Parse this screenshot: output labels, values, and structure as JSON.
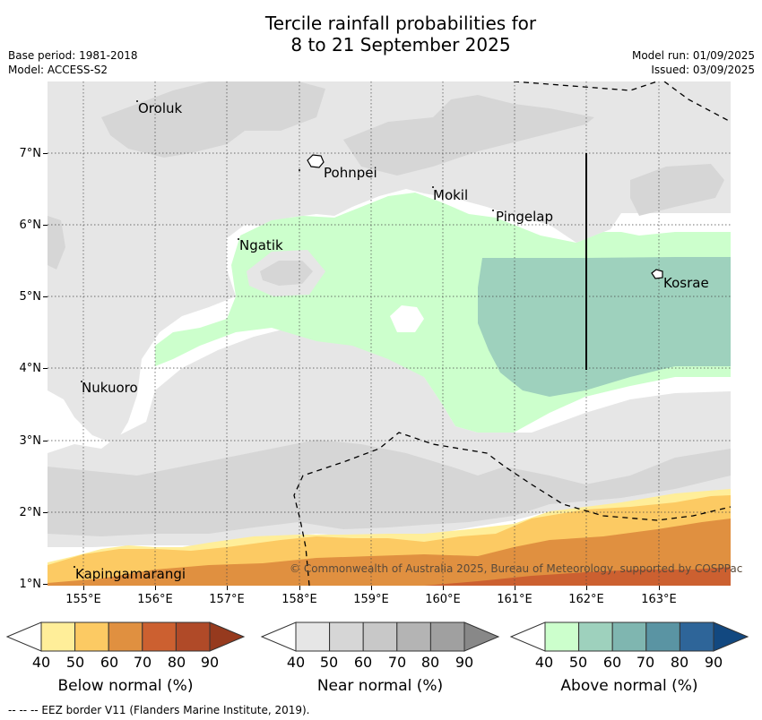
{
  "header": {
    "title_line1": "Tercile rainfall probabilities for",
    "title_line2": "8 to 21 September 2025",
    "base_period": "Base period: 1981-2018",
    "model": "Model: ACCESS-S2",
    "model_run": "Model run: 01/09/2025",
    "issued": "Issued: 03/09/2025"
  },
  "map": {
    "lat_labels": [
      "7°N",
      "6°N",
      "5°N",
      "4°N",
      "3°N",
      "2°N",
      "1°N"
    ],
    "lon_labels": [
      "155°E",
      "156°E",
      "157°E",
      "158°E",
      "159°E",
      "160°E",
      "161°E",
      "162°E",
      "163°E"
    ],
    "islands": {
      "oroluk": "Oroluk",
      "pohnpei": "Pohnpei",
      "mokil": "Mokil",
      "pingelap": "Pingelap",
      "ngatik": "Ngatik",
      "kosrae": "Kosrae",
      "nukuoro": "Nukuoro",
      "kapingamarangi": "Kapingamarangi"
    },
    "copyright": "© Commonwealth of Australia 2025, Bureau of Meteorology, supported by COSPPac",
    "colors": {
      "near_40": "#e6e6e6",
      "near_50": "#d6d6d6",
      "above_40": "#ccffcc",
      "above_50": "#9ed1bd",
      "below_40": "#ffee99",
      "below_50": "#fcca63",
      "below_60": "#e09040",
      "below_70": "#cc6030"
    }
  },
  "colorbars": {
    "levels": [
      "40",
      "50",
      "60",
      "70",
      "80",
      "90"
    ],
    "below": {
      "label": "Below normal (%)",
      "colors": [
        "#ffffff",
        "#ffee99",
        "#fcca63",
        "#e09040",
        "#cc6030",
        "#b04a28",
        "#963a1e"
      ]
    },
    "near": {
      "label": "Near normal (%)",
      "colors": [
        "#ffffff",
        "#e6e6e6",
        "#d6d6d6",
        "#c8c8c8",
        "#b4b4b4",
        "#a0a0a0",
        "#888888"
      ]
    },
    "above": {
      "label": "Above normal (%)",
      "colors": [
        "#ffffff",
        "#ccffcc",
        "#9ed1bd",
        "#7fb6b0",
        "#5a94a3",
        "#2e6599",
        "#124880"
      ]
    }
  },
  "footer": {
    "eez_note": "--  --  -- EEZ border V11 (Flanders Marine Institute, 2019)."
  }
}
